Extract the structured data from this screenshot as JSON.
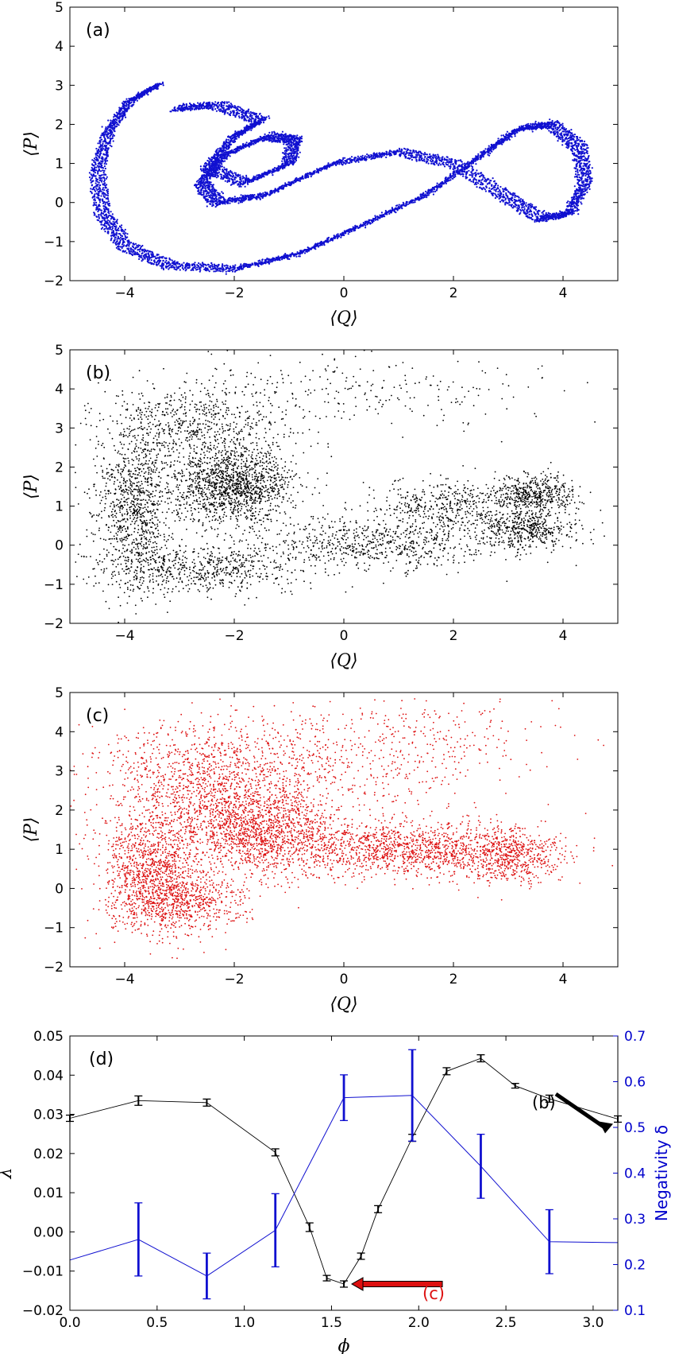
{
  "chart_data": [
    {
      "type": "scatter",
      "panel_label": "(a)",
      "xlabel": "⟨Q⟩",
      "ylabel": "⟨P⟩",
      "xlim": [
        -5,
        5
      ],
      "ylim": [
        -2,
        5
      ],
      "xticks": [
        "−4",
        "−2",
        "0",
        "2",
        "4"
      ],
      "yticks": [
        "−2",
        "−1",
        "0",
        "1",
        "2",
        "3",
        "4",
        "5"
      ],
      "color": "#1010d0",
      "description_points": [
        [
          -3.4,
          3.0
        ],
        [
          -3.9,
          2.6
        ],
        [
          -4.3,
          1.8
        ],
        [
          -4.5,
          0.8
        ],
        [
          -4.4,
          -0.3
        ],
        [
          -4.0,
          -1.1
        ],
        [
          -3.2,
          -1.6
        ],
        [
          -2.0,
          -1.7
        ],
        [
          -0.8,
          -1.3
        ],
        [
          0.3,
          -0.6
        ],
        [
          1.5,
          0.2
        ],
        [
          2.5,
          1.2
        ],
        [
          3.2,
          1.9
        ],
        [
          3.8,
          2.0
        ],
        [
          4.3,
          1.4
        ],
        [
          4.4,
          0.5
        ],
        [
          4.1,
          -0.3
        ],
        [
          3.6,
          -0.4
        ],
        [
          2.9,
          0.2
        ],
        [
          2.0,
          1.0
        ],
        [
          1.0,
          1.3
        ],
        [
          -0.2,
          1.0
        ],
        [
          -1.4,
          0.2
        ],
        [
          -2.3,
          0.0
        ],
        [
          -2.6,
          0.5
        ],
        [
          -2.2,
          1.2
        ],
        [
          -1.4,
          1.7
        ],
        [
          -0.9,
          1.6
        ],
        [
          -1.0,
          1.0
        ],
        [
          -1.8,
          0.5
        ],
        [
          -2.5,
          0.9
        ],
        [
          -2.0,
          1.7
        ],
        [
          -1.5,
          2.1
        ],
        [
          -2.3,
          2.5
        ],
        [
          -3.1,
          2.4
        ]
      ]
    },
    {
      "type": "scatter",
      "panel_label": "(b)",
      "xlabel": "⟨Q⟩",
      "ylabel": "⟨P⟩",
      "xlim": [
        -5,
        5
      ],
      "ylim": [
        -2,
        5
      ],
      "xticks": [
        "−4",
        "−2",
        "0",
        "2",
        "4"
      ],
      "yticks": [
        "−2",
        "−1",
        "0",
        "1",
        "2",
        "3",
        "4",
        "5"
      ],
      "color": "#000000",
      "clusters": [
        {
          "cx": -2.0,
          "cy": 1.5,
          "sx": 0.55,
          "sy": 0.45,
          "n": 1300
        },
        {
          "cx": 3.5,
          "cy": 1.3,
          "sx": 0.35,
          "sy": 0.25,
          "n": 450
        },
        {
          "cx": 3.4,
          "cy": 0.4,
          "sx": 0.45,
          "sy": 0.25,
          "n": 450
        },
        {
          "cx": -3.8,
          "cy": 1.0,
          "sx": 0.35,
          "sy": 1.1,
          "n": 1000
        },
        {
          "cx": -2.6,
          "cy": 3.0,
          "sx": 0.9,
          "sy": 0.55,
          "n": 700
        },
        {
          "cx": -2.5,
          "cy": -0.6,
          "sx": 0.9,
          "sy": 0.3,
          "n": 600
        },
        {
          "cx": 0.5,
          "cy": 0.0,
          "sx": 1.2,
          "sy": 0.35,
          "n": 700
        },
        {
          "cx": 2.0,
          "cy": 1.0,
          "sx": 0.8,
          "sy": 0.35,
          "n": 500
        },
        {
          "cx": 0.5,
          "cy": 4.0,
          "sx": 1.8,
          "sy": 0.45,
          "n": 220
        }
      ]
    },
    {
      "type": "scatter",
      "panel_label": "(c)",
      "xlabel": "⟨Q⟩",
      "ylabel": "⟨P⟩",
      "xlim": [
        -5,
        5
      ],
      "ylim": [
        -2,
        5
      ],
      "xticks": [
        "−4",
        "−2",
        "0",
        "2",
        "4"
      ],
      "yticks": [
        "−2",
        "−1",
        "0",
        "1",
        "2",
        "3",
        "4",
        "5"
      ],
      "color": "#dd1010",
      "clusters": [
        {
          "cx": -1.6,
          "cy": 1.5,
          "sx": 0.75,
          "sy": 0.55,
          "n": 1500
        },
        {
          "cx": 1.2,
          "cy": 1.0,
          "sx": 1.2,
          "sy": 0.35,
          "n": 1300
        },
        {
          "cx": 3.0,
          "cy": 0.8,
          "sx": 0.45,
          "sy": 0.35,
          "n": 500
        },
        {
          "cx": -3.5,
          "cy": 0.5,
          "sx": 0.45,
          "sy": 0.8,
          "n": 1100
        },
        {
          "cx": -3.0,
          "cy": -0.4,
          "sx": 0.6,
          "sy": 0.35,
          "n": 600
        },
        {
          "cx": -2.5,
          "cy": 2.8,
          "sx": 1.0,
          "sy": 0.75,
          "n": 1000
        },
        {
          "cx": 0.0,
          "cy": 3.2,
          "sx": 1.5,
          "sy": 0.6,
          "n": 500
        },
        {
          "cx": 1.5,
          "cy": 4.2,
          "sx": 1.4,
          "sy": 0.35,
          "n": 120
        }
      ]
    },
    {
      "type": "line",
      "panel_label": "(d)",
      "xlabel": "ϕ",
      "ylabel": "λ",
      "y2label": "Negativity δ",
      "xlim": [
        0.0,
        3.14159
      ],
      "ylim": [
        -0.02,
        0.05
      ],
      "y2lim": [
        0.1,
        0.7
      ],
      "xticks": [
        "0.0",
        "0.5",
        "1.0",
        "1.5",
        "2.0",
        "2.5",
        "3.0"
      ],
      "yticks": [
        "−0.02",
        "−0.01",
        "0.00",
        "0.01",
        "0.02",
        "0.03",
        "0.04",
        "0.05"
      ],
      "y2ticks": [
        "0.1",
        "0.2",
        "0.3",
        "0.4",
        "0.5",
        "0.6",
        "0.7"
      ],
      "series": [
        {
          "axis": "left",
          "color": "#000000",
          "x": [
            0.0,
            0.393,
            0.785,
            1.178,
            1.374,
            1.473,
            1.571,
            1.669,
            1.767,
            1.963,
            2.16,
            2.356,
            2.553,
            2.749,
            3.14159
          ],
          "y": [
            0.029,
            0.0335,
            0.033,
            0.0203,
            0.0012,
            -0.0118,
            -0.0133,
            -0.0062,
            0.0058,
            0.024,
            0.041,
            0.0443,
            0.0373,
            0.034,
            0.0288
          ],
          "err": [
            0.0008,
            0.0012,
            0.0009,
            0.0009,
            0.0011,
            0.0007,
            0.0008,
            0.0008,
            0.0009,
            0.0009,
            0.0009,
            0.0009,
            0.0006,
            0.0009,
            0.0008
          ]
        },
        {
          "axis": "right",
          "color": "#1010d0",
          "x": [
            0.0,
            0.393,
            0.785,
            1.178,
            1.571,
            1.963,
            2.356,
            2.749,
            3.14159
          ],
          "y": [
            0.21,
            0.255,
            0.175,
            0.275,
            0.565,
            0.57,
            0.415,
            0.25,
            0.248
          ],
          "err": [
            0.05,
            0.08,
            0.05,
            0.08,
            0.05,
            0.1,
            0.07,
            0.07,
            0.05
          ],
          "err_visible": [
            false,
            true,
            true,
            true,
            true,
            true,
            true,
            true,
            false
          ]
        }
      ],
      "annotations": [
        {
          "text": "(b)",
          "color": "#000000"
        },
        {
          "text": "(c)",
          "color": "#dd1010"
        }
      ]
    }
  ]
}
